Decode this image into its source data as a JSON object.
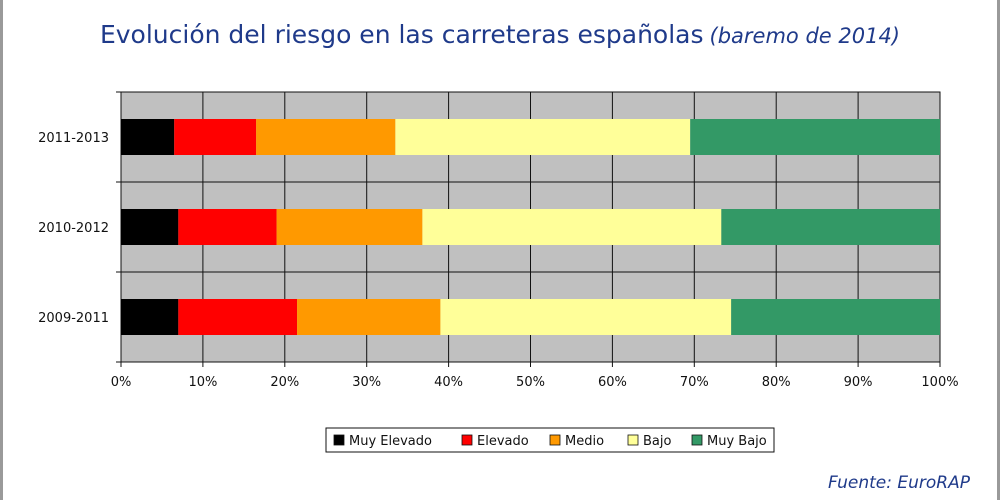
{
  "title": "Evolución del riesgo en las carreteras españolas",
  "subtitle": "(baremo de 2014)",
  "source": "Fuente: EuroRAP",
  "chart_data": {
    "type": "bar",
    "orientation": "horizontal",
    "stacked": true,
    "normalized_percent": true,
    "categories": [
      "2011-2013",
      "2010-2012",
      "2009-2011"
    ],
    "series": [
      {
        "name": "Muy Elevado",
        "color": "#000000",
        "values": [
          6.5,
          7,
          7
        ]
      },
      {
        "name": "Elevado",
        "color": "#ff0000",
        "values": [
          10,
          12,
          14.5
        ]
      },
      {
        "name": "Medio",
        "color": "#ff9900",
        "values": [
          17,
          17.8,
          17.5
        ]
      },
      {
        "name": "Bajo",
        "color": "#ffff99",
        "values": [
          36,
          36.5,
          35.5
        ]
      },
      {
        "name": "Muy Bajo",
        "color": "#339966",
        "values": [
          30.5,
          26.7,
          25.5
        ]
      }
    ],
    "xlim": [
      0,
      100
    ],
    "xticks": [
      "0%",
      "10%",
      "20%",
      "30%",
      "40%",
      "50%",
      "60%",
      "70%",
      "80%",
      "90%",
      "100%"
    ],
    "grid": true,
    "plot_background": "#c0c0c0",
    "legend_position": "bottom-center"
  }
}
